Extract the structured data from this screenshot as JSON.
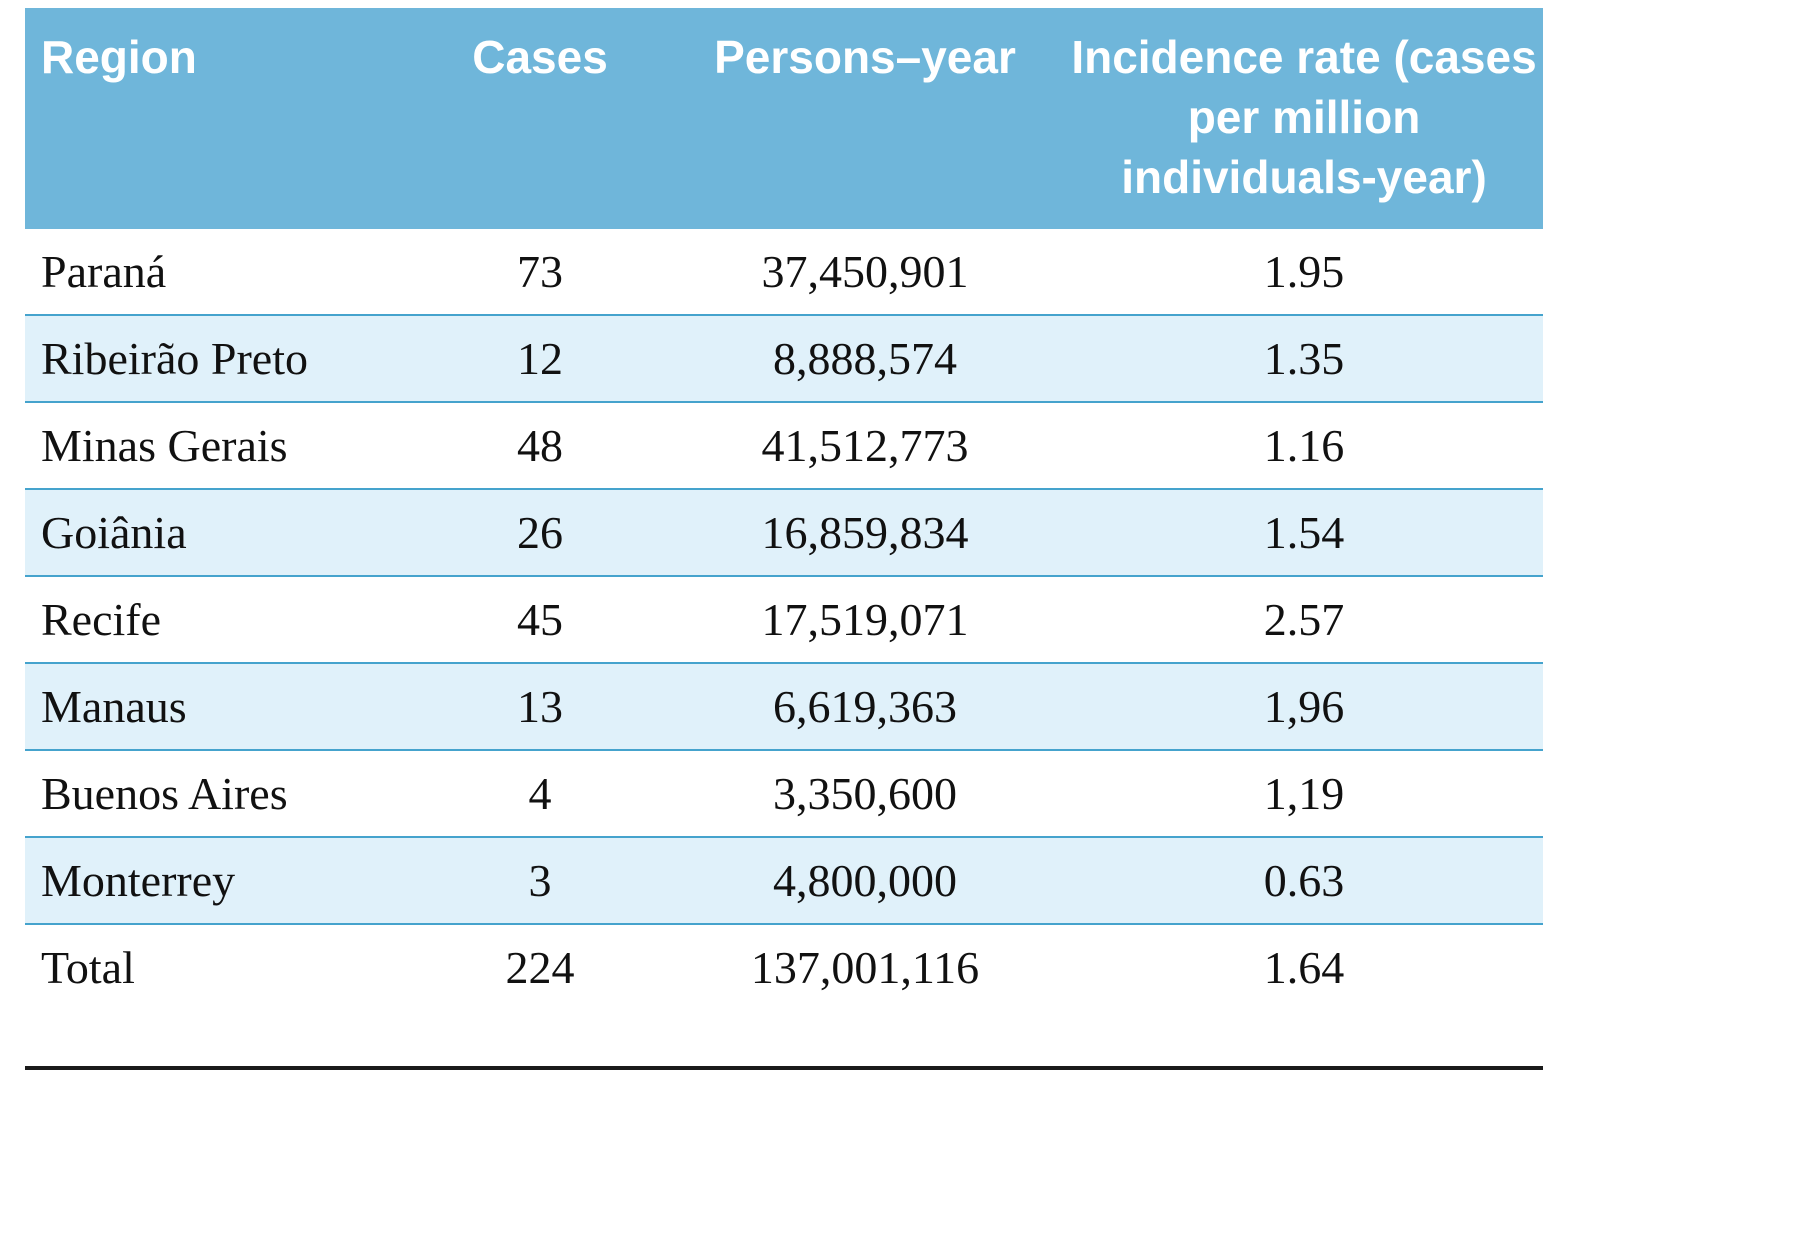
{
  "table": {
    "columns": [
      {
        "label": "Region"
      },
      {
        "label": "Cases"
      },
      {
        "label": "Persons–year"
      },
      {
        "label": "Incidence rate (cases per million individuals-year)"
      }
    ],
    "rows": [
      {
        "region": "Paraná",
        "cases": "73",
        "persons_year": "37,450,901",
        "incidence": "1.95"
      },
      {
        "region": "Ribeirão Preto",
        "cases": "12",
        "persons_year": "8,888,574",
        "incidence": "1.35"
      },
      {
        "region": "Minas Gerais",
        "cases": "48",
        "persons_year": "41,512,773",
        "incidence": "1.16"
      },
      {
        "region": "Goiânia",
        "cases": "26",
        "persons_year": "16,859,834",
        "incidence": "1.54"
      },
      {
        "region": "Recife",
        "cases": "45",
        "persons_year": "17,519,071",
        "incidence": "2.57"
      },
      {
        "region": "Manaus",
        "cases": "13",
        "persons_year": "6,619,363",
        "incidence": "1,96"
      },
      {
        "region": "Buenos Aires",
        "cases": "4",
        "persons_year": "3,350,600",
        "incidence": "1,19"
      },
      {
        "region": "Monterrey",
        "cases": "3",
        "persons_year": "4,800,000",
        "incidence": "0.63"
      },
      {
        "region": "Total",
        "cases": "224",
        "persons_year": "137,001,116",
        "incidence": "1.64"
      }
    ]
  },
  "chart_data": {
    "type": "table",
    "title": "",
    "columns": [
      "Region",
      "Cases",
      "Persons–year",
      "Incidence rate (cases per million individuals-year)"
    ],
    "rows": [
      [
        "Paraná",
        73,
        "37,450,901",
        "1.95"
      ],
      [
        "Ribeirão Preto",
        12,
        "8,888,574",
        "1.35"
      ],
      [
        "Minas Gerais",
        48,
        "41,512,773",
        "1.16"
      ],
      [
        "Goiânia",
        26,
        "16,859,834",
        "1.54"
      ],
      [
        "Recife",
        45,
        "17,519,071",
        "2.57"
      ],
      [
        "Manaus",
        13,
        "6,619,363",
        "1,96"
      ],
      [
        "Buenos Aires",
        4,
        "3,350,600",
        "1,19"
      ],
      [
        "Monterrey",
        3,
        "4,800,000",
        "0.63"
      ],
      [
        "Total",
        224,
        "137,001,116",
        "1.64"
      ]
    ]
  },
  "colors": {
    "header_bg": "#6fb6da",
    "shaded_row_bg": "#e0f1fa",
    "row_rule": "#45a3cd",
    "header_text": "#ffffff",
    "body_text": "#111111",
    "bottom_rule": "#1a1a1a"
  }
}
